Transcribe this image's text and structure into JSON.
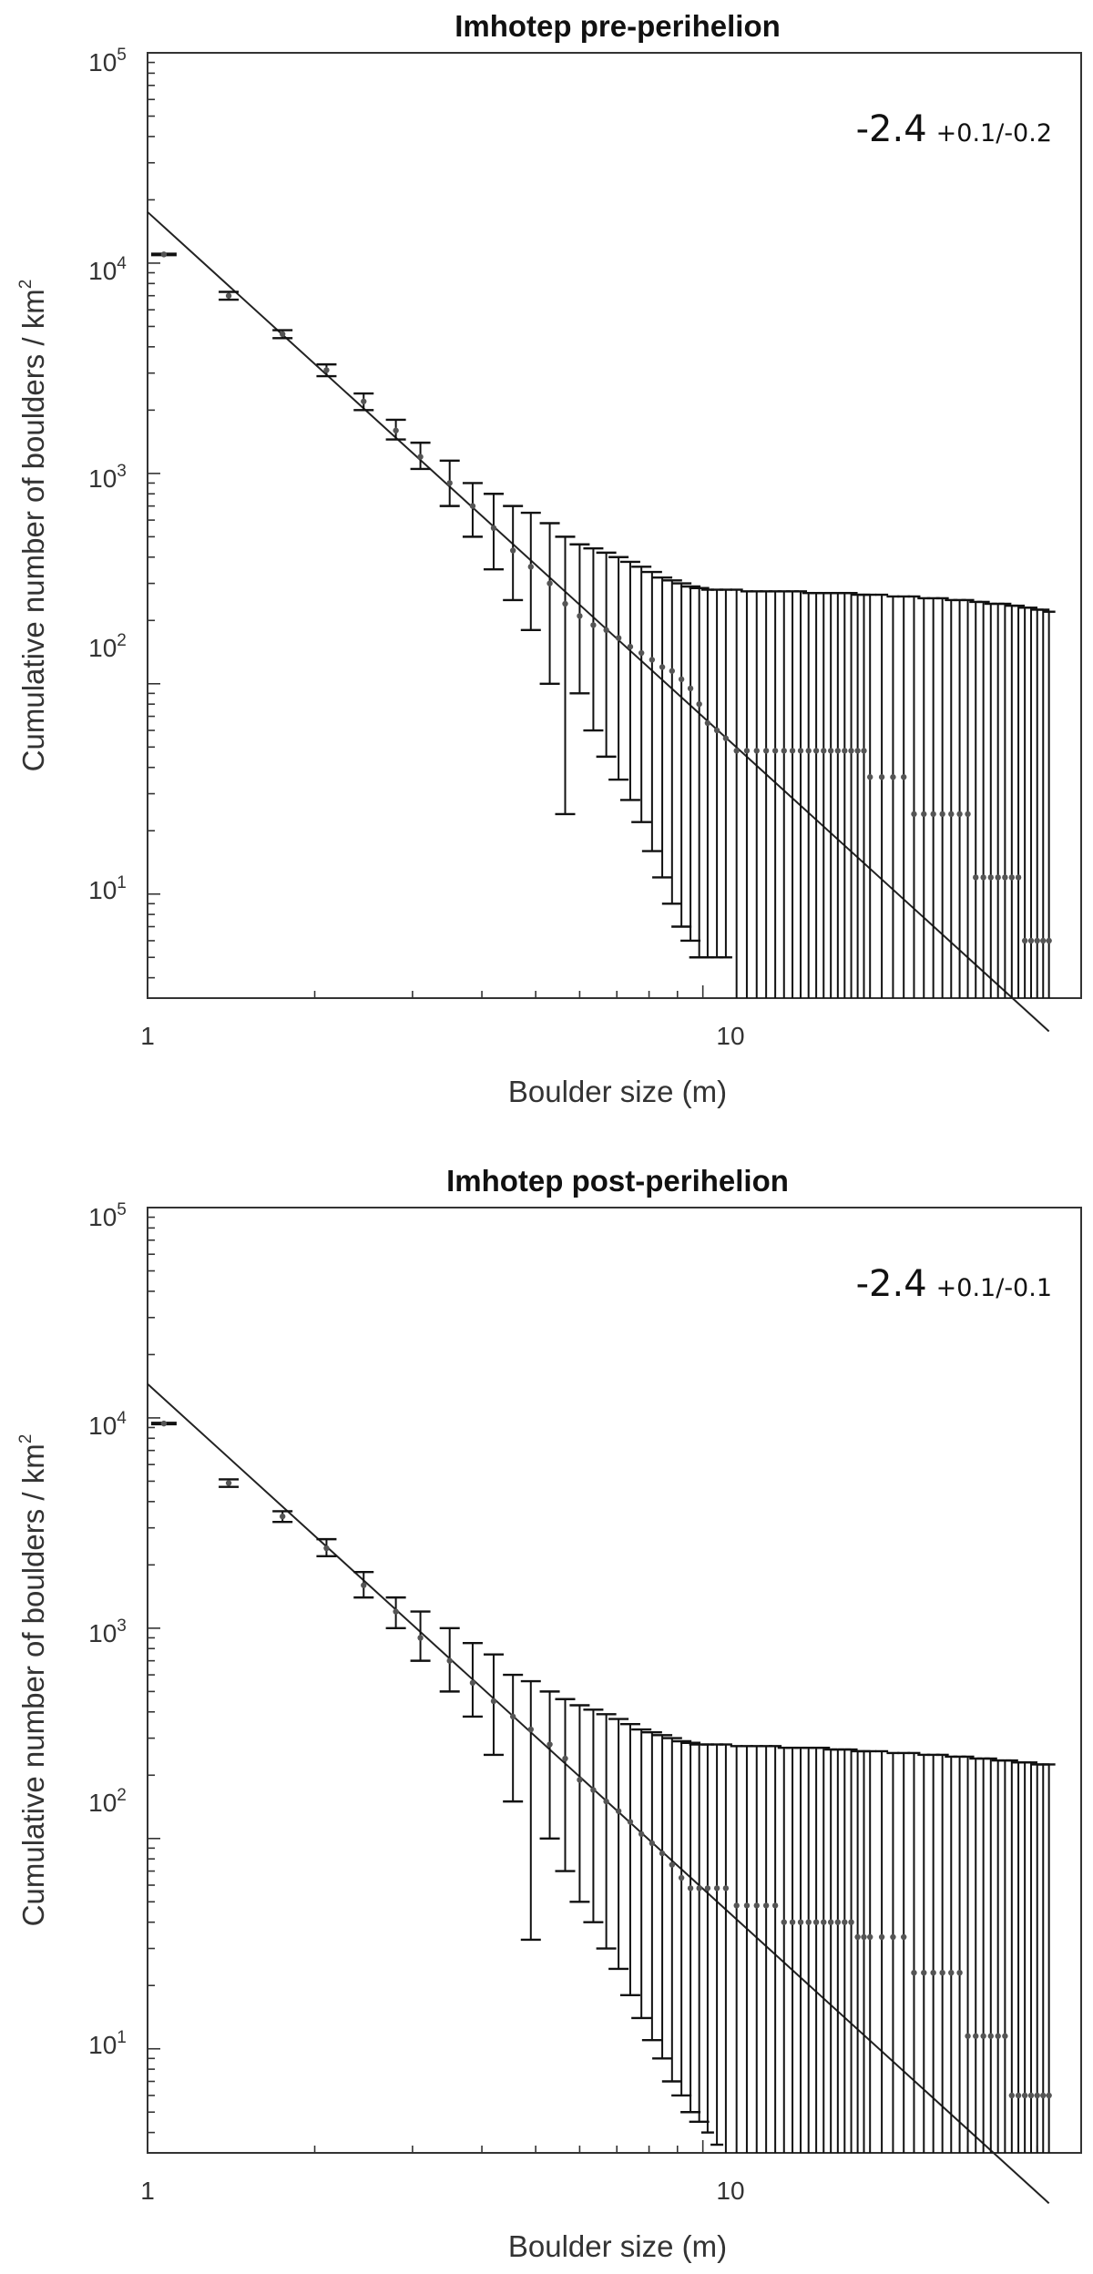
{
  "chart_data": [
    {
      "type": "scatter",
      "title": "Imhotep pre-perihelion",
      "xlabel": "Boulder size (m)",
      "ylabel": "Cumulative number of boulders / km",
      "ylabel_sup": "2",
      "x_scale": "log",
      "y_scale": "log",
      "xlim": [
        1,
        48
      ],
      "ylim": [
        3.2,
        100000
      ],
      "x_ticks": [
        {
          "value": 1,
          "label": "1"
        },
        {
          "value": 10,
          "label": "10"
        }
      ],
      "y_ticks": [
        {
          "value": 10,
          "base": "10",
          "exp": "1"
        },
        {
          "value": 100,
          "base": "10",
          "exp": "2"
        },
        {
          "value": 1000,
          "base": "10",
          "exp": "3"
        },
        {
          "value": 10000,
          "base": "10",
          "exp": "4"
        },
        {
          "value": 100000,
          "base": "10",
          "exp": "5"
        }
      ],
      "annotation": {
        "main": "-2.4",
        "err": "+0.1/-0.2"
      },
      "fit": {
        "slope": -2.4,
        "intercept": 17500,
        "x_range": [
          1,
          42
        ]
      },
      "points": [
        [
          1.07,
          11000,
          11000,
          11000
        ],
        [
          1.4,
          7000,
          6700,
          7300
        ],
        [
          1.75,
          4600,
          4400,
          4800
        ],
        [
          2.1,
          3100,
          2900,
          3300
        ],
        [
          2.45,
          2200,
          2000,
          2400
        ],
        [
          2.8,
          1600,
          1450,
          1800
        ],
        [
          3.1,
          1200,
          1050,
          1400
        ],
        [
          3.5,
          900,
          700,
          1150
        ],
        [
          3.85,
          700,
          500,
          900
        ],
        [
          4.2,
          550,
          350,
          800
        ],
        [
          4.55,
          430,
          250,
          700
        ],
        [
          4.9,
          360,
          180,
          650
        ],
        [
          5.3,
          300,
          100,
          580
        ],
        [
          5.65,
          240,
          24,
          500
        ],
        [
          6.0,
          210,
          90,
          460
        ],
        [
          6.35,
          190,
          60,
          440
        ],
        [
          6.7,
          180,
          45,
          420
        ],
        [
          7.05,
          165,
          35,
          400
        ],
        [
          7.4,
          150,
          28,
          380
        ],
        [
          7.75,
          140,
          22,
          360
        ],
        [
          8.1,
          130,
          16,
          340
        ],
        [
          8.45,
          120,
          12,
          320
        ],
        [
          8.8,
          115,
          9,
          310
        ],
        [
          9.15,
          105,
          7,
          300
        ],
        [
          9.5,
          95,
          6,
          290
        ],
        [
          9.85,
          80,
          5,
          285
        ],
        [
          10.2,
          65,
          5,
          280
        ],
        [
          10.6,
          60,
          5,
          280
        ],
        [
          11.0,
          55,
          5,
          280
        ],
        [
          11.5,
          48,
          3.2,
          280
        ],
        [
          12,
          48,
          3.2,
          275
        ],
        [
          12.5,
          48,
          3.2,
          275
        ],
        [
          13,
          48,
          3.2,
          275
        ],
        [
          13.5,
          48,
          3.2,
          275
        ],
        [
          14,
          48,
          3.2,
          275
        ],
        [
          14.5,
          48,
          3.2,
          275
        ],
        [
          15,
          48,
          3.2,
          275
        ],
        [
          15.5,
          48,
          3.2,
          270
        ],
        [
          16,
          48,
          3.2,
          270
        ],
        [
          16.5,
          48,
          3.2,
          270
        ],
        [
          17,
          48,
          3.2,
          270
        ],
        [
          17.5,
          48,
          3.2,
          270
        ],
        [
          18,
          48,
          3.2,
          270
        ],
        [
          18.5,
          48,
          3.2,
          270
        ],
        [
          19,
          48,
          3.2,
          265
        ],
        [
          19.5,
          48,
          3.2,
          265
        ],
        [
          20,
          36,
          3.2,
          265
        ],
        [
          21,
          36,
          3.2,
          265
        ],
        [
          22,
          36,
          3.2,
          260
        ],
        [
          23,
          36,
          3.2,
          260
        ],
        [
          24,
          24,
          3.2,
          260
        ],
        [
          25,
          24,
          3.2,
          255
        ],
        [
          26,
          24,
          3.2,
          255
        ],
        [
          27,
          24,
          3.2,
          255
        ],
        [
          28,
          24,
          3.2,
          250
        ],
        [
          29,
          24,
          3.2,
          250
        ],
        [
          30,
          24,
          3.2,
          250
        ],
        [
          31,
          12,
          3.2,
          245
        ],
        [
          32,
          12,
          3.2,
          245
        ],
        [
          33,
          12,
          3.2,
          240
        ],
        [
          34,
          12,
          3.2,
          240
        ],
        [
          35,
          12,
          3.2,
          240
        ],
        [
          36,
          12,
          3.2,
          235
        ],
        [
          37,
          12,
          3.2,
          235
        ],
        [
          38,
          6,
          3.2,
          230
        ],
        [
          39,
          6,
          3.2,
          230
        ],
        [
          40,
          6,
          3.2,
          225
        ],
        [
          41,
          6,
          3.2,
          225
        ],
        [
          42,
          6,
          3.2,
          220
        ]
      ]
    },
    {
      "type": "scatter",
      "title": "Imhotep post-perihelion",
      "xlabel": "Boulder size (m)",
      "ylabel": "Cumulative number of boulders / km",
      "ylabel_sup": "2",
      "x_scale": "log",
      "y_scale": "log",
      "xlim": [
        1,
        48
      ],
      "ylim": [
        3.2,
        100000
      ],
      "x_ticks": [
        {
          "value": 1,
          "label": "1"
        },
        {
          "value": 10,
          "label": "10"
        }
      ],
      "y_ticks": [
        {
          "value": 10,
          "base": "10",
          "exp": "1"
        },
        {
          "value": 100,
          "base": "10",
          "exp": "2"
        },
        {
          "value": 1000,
          "base": "10",
          "exp": "3"
        },
        {
          "value": 10000,
          "base": "10",
          "exp": "4"
        },
        {
          "value": 100000,
          "base": "10",
          "exp": "5"
        }
      ],
      "annotation": {
        "main": "-2.4",
        "err": "+0.1/-0.1"
      },
      "fit": {
        "slope": -2.4,
        "intercept": 14500,
        "x_range": [
          1,
          42
        ]
      },
      "points": [
        [
          1.07,
          9400,
          9400,
          9400
        ],
        [
          1.4,
          4900,
          4700,
          5100
        ],
        [
          1.75,
          3400,
          3200,
          3600
        ],
        [
          2.1,
          2400,
          2200,
          2650
        ],
        [
          2.45,
          1600,
          1400,
          1850
        ],
        [
          2.8,
          1200,
          1000,
          1400
        ],
        [
          3.1,
          900,
          700,
          1200
        ],
        [
          3.5,
          700,
          500,
          1000
        ],
        [
          3.85,
          550,
          380,
          850
        ],
        [
          4.2,
          450,
          250,
          750
        ],
        [
          4.55,
          380,
          150,
          600
        ],
        [
          4.9,
          330,
          33,
          560
        ],
        [
          5.3,
          280,
          100,
          500
        ],
        [
          5.65,
          240,
          70,
          460
        ],
        [
          6.0,
          190,
          50,
          430
        ],
        [
          6.35,
          170,
          40,
          410
        ],
        [
          6.7,
          150,
          30,
          390
        ],
        [
          7.05,
          135,
          24,
          370
        ],
        [
          7.4,
          120,
          18,
          350
        ],
        [
          7.75,
          105,
          14,
          330
        ],
        [
          8.1,
          95,
          11,
          320
        ],
        [
          8.45,
          85,
          9,
          310
        ],
        [
          8.8,
          75,
          7,
          300
        ],
        [
          9.15,
          65,
          6,
          290
        ],
        [
          9.5,
          58,
          5,
          285
        ],
        [
          9.85,
          58,
          4.5,
          280
        ],
        [
          10.2,
          58,
          4,
          280
        ],
        [
          10.6,
          58,
          3.5,
          280
        ],
        [
          11.0,
          58,
          3.2,
          280
        ],
        [
          11.5,
          48,
          3.2,
          275
        ],
        [
          12,
          48,
          3.2,
          275
        ],
        [
          12.5,
          48,
          3.2,
          275
        ],
        [
          13,
          48,
          3.2,
          275
        ],
        [
          13.5,
          48,
          3.2,
          275
        ],
        [
          14,
          40,
          3.2,
          270
        ],
        [
          14.5,
          40,
          3.2,
          270
        ],
        [
          15,
          40,
          3.2,
          270
        ],
        [
          15.5,
          40,
          3.2,
          270
        ],
        [
          16,
          40,
          3.2,
          270
        ],
        [
          16.5,
          40,
          3.2,
          270
        ],
        [
          17,
          40,
          3.2,
          265
        ],
        [
          17.5,
          40,
          3.2,
          265
        ],
        [
          18,
          40,
          3.2,
          265
        ],
        [
          18.5,
          40,
          3.2,
          265
        ],
        [
          19,
          34,
          3.2,
          260
        ],
        [
          19.5,
          34,
          3.2,
          260
        ],
        [
          20,
          34,
          3.2,
          260
        ],
        [
          21,
          34,
          3.2,
          260
        ],
        [
          22,
          34,
          3.2,
          255
        ],
        [
          23,
          34,
          3.2,
          255
        ],
        [
          24,
          23,
          3.2,
          255
        ],
        [
          25,
          23,
          3.2,
          250
        ],
        [
          26,
          23,
          3.2,
          250
        ],
        [
          27,
          23,
          3.2,
          250
        ],
        [
          28,
          23,
          3.2,
          245
        ],
        [
          29,
          23,
          3.2,
          245
        ],
        [
          30,
          11.5,
          3.2,
          245
        ],
        [
          31,
          11.5,
          3.2,
          240
        ],
        [
          32,
          11.5,
          3.2,
          240
        ],
        [
          33,
          11.5,
          3.2,
          240
        ],
        [
          34,
          11.5,
          3.2,
          235
        ],
        [
          35,
          11.5,
          3.2,
          235
        ],
        [
          36,
          6,
          3.2,
          235
        ],
        [
          37,
          6,
          3.2,
          230
        ],
        [
          38,
          6,
          3.2,
          230
        ],
        [
          39,
          6,
          3.2,
          230
        ],
        [
          40,
          6,
          3.2,
          225
        ],
        [
          41,
          6,
          3.2,
          225
        ],
        [
          42,
          6,
          3.2,
          225
        ]
      ]
    }
  ]
}
